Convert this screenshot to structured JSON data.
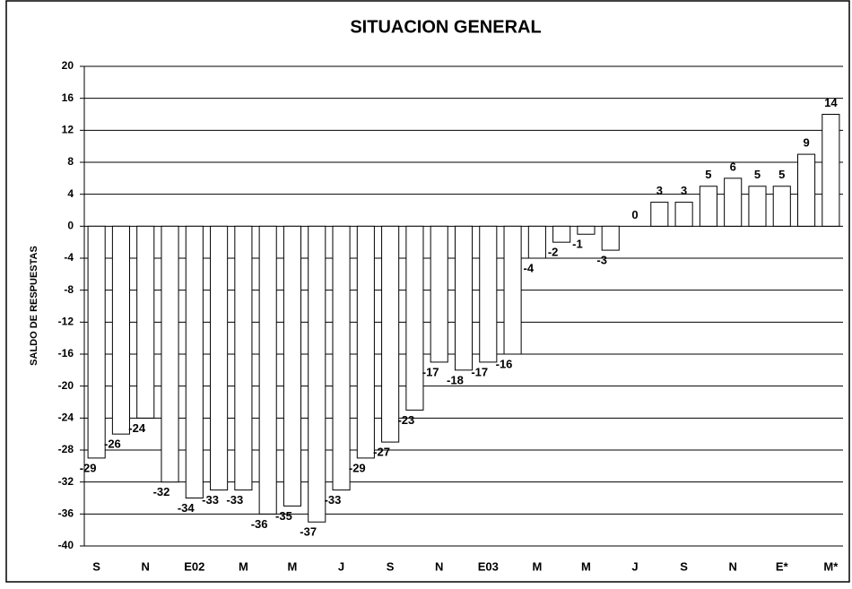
{
  "chart_data": {
    "type": "bar",
    "title": "SITUACION GENERAL",
    "y_label": "SALDO DE RESPUESTAS",
    "categories": [
      "S",
      null,
      "N",
      null,
      "E02",
      null,
      "M",
      null,
      "M",
      null,
      "J",
      null,
      "S",
      null,
      "N",
      null,
      "E03",
      null,
      "M",
      null,
      "M",
      null,
      "J",
      null,
      "S",
      null,
      "N",
      null,
      "E*",
      null,
      "M*"
    ],
    "values": [
      -29,
      -26,
      -24,
      -32,
      -34,
      -33,
      -33,
      -36,
      -35,
      -37,
      -33,
      -29,
      -27,
      -23,
      -17,
      -18,
      -17,
      -16,
      -4,
      -2,
      -1,
      -3,
      0,
      3,
      3,
      5,
      6,
      5,
      5,
      9,
      14
    ],
    "color": "#ffffff",
    "ylim": [
      -40,
      20
    ],
    "yticks": [
      -40,
      -36,
      -32,
      -28,
      -24,
      -20,
      -16,
      -12,
      -8,
      -4,
      0,
      4,
      8,
      12,
      16,
      20
    ],
    "grid": true
  }
}
